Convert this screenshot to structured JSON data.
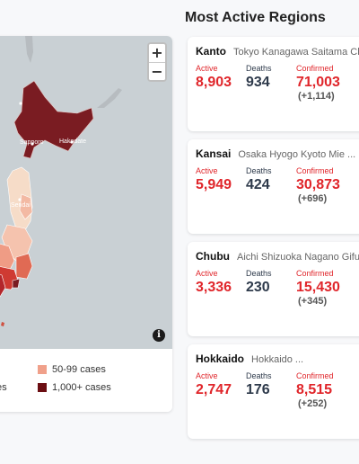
{
  "title": "Most Active Regions",
  "map": {
    "zoom_in": "+",
    "zoom_out": "−",
    "info": "i",
    "city_labels": [
      "Sapporo",
      "Hakodate",
      "Sendai"
    ],
    "legend": [
      {
        "label": "50-99 cases",
        "color": "#f0a08a"
      },
      {
        "label": "1,000+ cases",
        "color": "#6b0d12"
      },
      {
        "label": "es",
        "color": ""
      }
    ]
  },
  "labels": {
    "active": "Active",
    "deaths": "Deaths",
    "confirmed": "Confirmed"
  },
  "regions": [
    {
      "name": "Kanto",
      "prefectures": "Tokyo Kanagawa Saitama Chi",
      "active": "8,903",
      "deaths": "934",
      "confirmed": "71,003",
      "delta": "(+1,114)"
    },
    {
      "name": "Kansai",
      "prefectures": "Osaka Hyogo Kyoto Mie ...",
      "active": "5,949",
      "deaths": "424",
      "confirmed": "30,873",
      "delta": "(+696)"
    },
    {
      "name": "Chubu",
      "prefectures": "Aichi Shizuoka Nagano Gifu ...",
      "active": "3,336",
      "deaths": "230",
      "confirmed": "15,430",
      "delta": "(+345)"
    },
    {
      "name": "Hokkaido",
      "prefectures": "Hokkaido ...",
      "active": "2,747",
      "deaths": "176",
      "confirmed": "8,515",
      "delta": "(+252)"
    }
  ]
}
